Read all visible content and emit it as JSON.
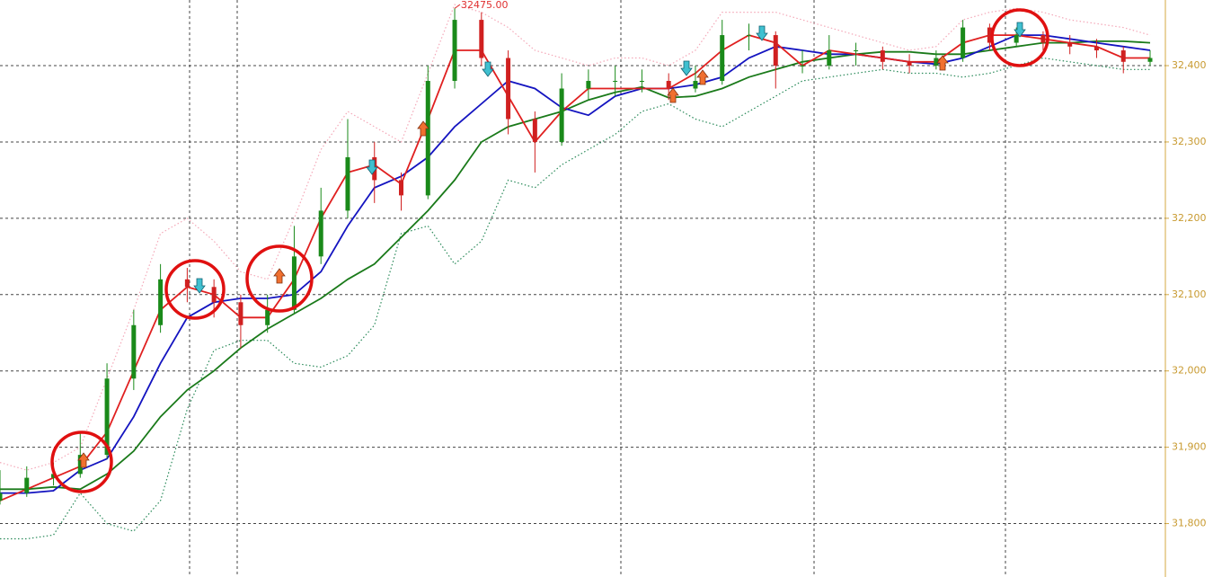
{
  "chart_data": {
    "type": "candlestick",
    "annotation": "32475.00",
    "ylim": [
      31730,
      32486
    ],
    "yticks": [
      {
        "value": 31800,
        "label": "31,800"
      },
      {
        "value": 31900,
        "label": "31,900"
      },
      {
        "value": 32000,
        "label": "32,000"
      },
      {
        "value": 32100,
        "label": "32,100"
      },
      {
        "value": 32200,
        "label": "32,200"
      },
      {
        "value": 32300,
        "label": "32,300"
      },
      {
        "value": 32400,
        "label": "32,400"
      }
    ],
    "grid": true,
    "up_color": "#1a8a1a",
    "down_color": "#d02020",
    "open": [
      31830,
      31840,
      31860,
      31865,
      31890,
      31990,
      32060,
      32120,
      32110,
      32090,
      32060,
      32080,
      32150,
      32210,
      32280,
      32250,
      32230,
      32380,
      32460,
      32410,
      32330,
      32300,
      32370,
      32380,
      32380,
      32380,
      32370,
      32380,
      32440,
      32440,
      32400,
      32400,
      32420,
      32420,
      32405,
      32400,
      32410,
      32450,
      32430,
      32440,
      32430,
      32425,
      32420,
      32405
    ],
    "high": [
      31870,
      31875,
      31880,
      31920,
      32010,
      32080,
      32140,
      32135,
      32120,
      32100,
      32100,
      32190,
      32240,
      32330,
      32300,
      32260,
      32400,
      32475,
      32470,
      32420,
      32340,
      32390,
      32395,
      32400,
      32395,
      32390,
      32400,
      32460,
      32455,
      32445,
      32420,
      32440,
      32430,
      32425,
      32415,
      32420,
      32460,
      32455,
      32450,
      32445,
      32440,
      32435,
      32425,
      32420
    ],
    "low": [
      31825,
      31835,
      31850,
      31860,
      31885,
      31975,
      32050,
      32090,
      32070,
      32030,
      32050,
      32075,
      32140,
      32200,
      32220,
      32210,
      32225,
      32370,
      32400,
      32310,
      32260,
      32295,
      32355,
      32360,
      32365,
      32355,
      32365,
      32375,
      32420,
      32370,
      32390,
      32395,
      32400,
      32395,
      32390,
      32395,
      32405,
      32420,
      32425,
      32420,
      32415,
      32410,
      32390,
      32400
    ],
    "close": [
      31840,
      31860,
      31865,
      31890,
      31990,
      32060,
      32120,
      32110,
      32090,
      32060,
      32080,
      32150,
      32210,
      32280,
      32250,
      32230,
      32380,
      32460,
      32410,
      32330,
      32300,
      32370,
      32380,
      32380,
      32380,
      32370,
      32380,
      32440,
      32440,
      32400,
      32400,
      32420,
      32420,
      32405,
      32400,
      32410,
      32450,
      32430,
      32440,
      32430,
      32425,
      32420,
      32405,
      32410
    ],
    "series": [
      {
        "color": "#f4a8b8",
        "style": "dotted",
        "values": [
          31880,
          31870,
          31880,
          31900,
          31990,
          32080,
          32180,
          32200,
          32170,
          32130,
          32120,
          32200,
          32290,
          32340,
          32320,
          32300,
          32390,
          32480,
          32470,
          32450,
          32420,
          32410,
          32400,
          32410,
          32410,
          32400,
          32420,
          32470,
          32470,
          32470,
          32460,
          32450,
          32440,
          32430,
          32420,
          32425,
          32460,
          32470,
          32475,
          32470,
          32460,
          32455,
          32450,
          32440
        ]
      },
      {
        "color": "#2a8a5a",
        "style": "dotted",
        "values": [
          31780,
          31780,
          31785,
          31840,
          31800,
          31790,
          31830,
          31950,
          32027,
          32040,
          32040,
          32010,
          32005,
          32020,
          32060,
          32180,
          32190,
          32140,
          32170,
          32250,
          32240,
          32270,
          32290,
          32310,
          32340,
          32350,
          32330,
          32320,
          32340,
          32360,
          32380,
          32385,
          32390,
          32395,
          32390,
          32390,
          32385,
          32390,
          32400,
          32410,
          32405,
          32400,
          32395,
          32395
        ]
      },
      {
        "color": "#1a7a1a",
        "style": "solid",
        "values": [
          31845,
          31845,
          31848,
          31845,
          31865,
          31895,
          31940,
          31975,
          32000,
          32030,
          32055,
          32075,
          32095,
          32120,
          32140,
          32175,
          32210,
          32250,
          32300,
          32320,
          32330,
          32340,
          32355,
          32365,
          32372,
          32358,
          32360,
          32370,
          32385,
          32395,
          32405,
          32410,
          32415,
          32418,
          32418,
          32415,
          32415,
          32420,
          32425,
          32430,
          32430,
          32432,
          32432,
          32430
        ]
      },
      {
        "color": "#1414c0",
        "style": "solid",
        "values": [
          31840,
          31840,
          31843,
          31870,
          31885,
          31940,
          32010,
          32070,
          32090,
          32095,
          32095,
          32100,
          32130,
          32190,
          32240,
          32255,
          32280,
          32320,
          32350,
          32380,
          32370,
          32345,
          32335,
          32360,
          32370,
          32370,
          32375,
          32385,
          32410,
          32425,
          32420,
          32415,
          32415,
          32410,
          32405,
          32402,
          32410,
          32425,
          32440,
          32440,
          32435,
          32430,
          32425,
          32420
        ]
      },
      {
        "color": "#e02020",
        "style": "solid",
        "values": [
          31830,
          31845,
          31860,
          31875,
          31920,
          32000,
          32080,
          32110,
          32100,
          32070,
          32070,
          32120,
          32200,
          32260,
          32270,
          32245,
          32330,
          32420,
          32420,
          32360,
          32300,
          32340,
          32370,
          32370,
          32370,
          32370,
          32390,
          32420,
          32440,
          32430,
          32400,
          32420,
          32415,
          32410,
          32405,
          32405,
          32430,
          32440,
          32440,
          32435,
          32430,
          32425,
          32410,
          32410
        ]
      }
    ]
  }
}
